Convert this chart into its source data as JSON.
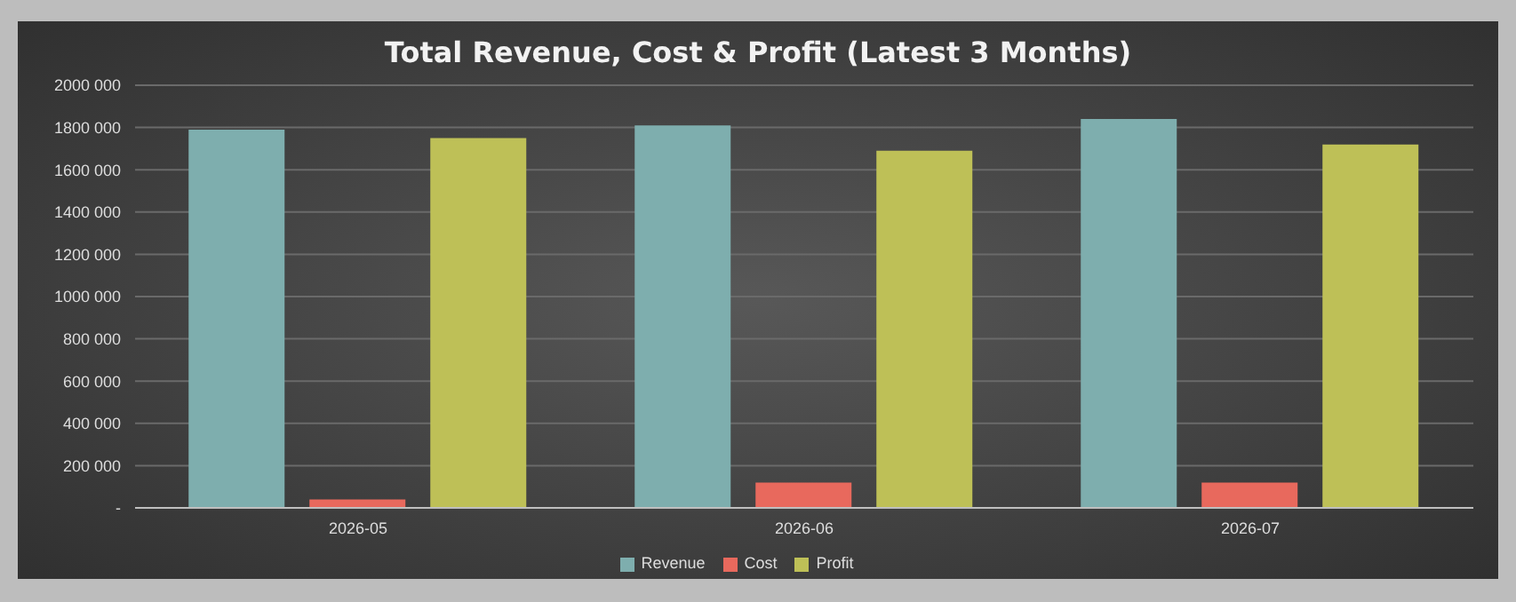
{
  "chart_data": {
    "type": "bar",
    "title": "Total Revenue, Cost & Profit (Latest 3 Months)",
    "categories": [
      "2026-05",
      "2026-06",
      "2026-07"
    ],
    "series": [
      {
        "name": "Revenue",
        "color": "#7eaeae",
        "values": [
          1790000,
          1810000,
          1840000
        ]
      },
      {
        "name": "Cost",
        "color": "#e8695d",
        "values": [
          40000,
          120000,
          120000
        ]
      },
      {
        "name": "Profit",
        "color": "#bec057",
        "values": [
          1750000,
          1690000,
          1720000
        ]
      }
    ],
    "ylim": [
      0,
      2000000
    ],
    "yticks": [
      {
        "value": 0,
        "label": "-"
      },
      {
        "value": 200000,
        "label": "200 000"
      },
      {
        "value": 400000,
        "label": "400 000"
      },
      {
        "value": 600000,
        "label": "600 000"
      },
      {
        "value": 800000,
        "label": "800 000"
      },
      {
        "value": 1000000,
        "label": "1000 000"
      },
      {
        "value": 1200000,
        "label": "1200 000"
      },
      {
        "value": 1400000,
        "label": "1400 000"
      },
      {
        "value": 1600000,
        "label": "1600 000"
      },
      {
        "value": 1800000,
        "label": "1800 000"
      },
      {
        "value": 2000000,
        "label": "2000 000"
      }
    ],
    "grid": "y",
    "legend": "bottom"
  }
}
